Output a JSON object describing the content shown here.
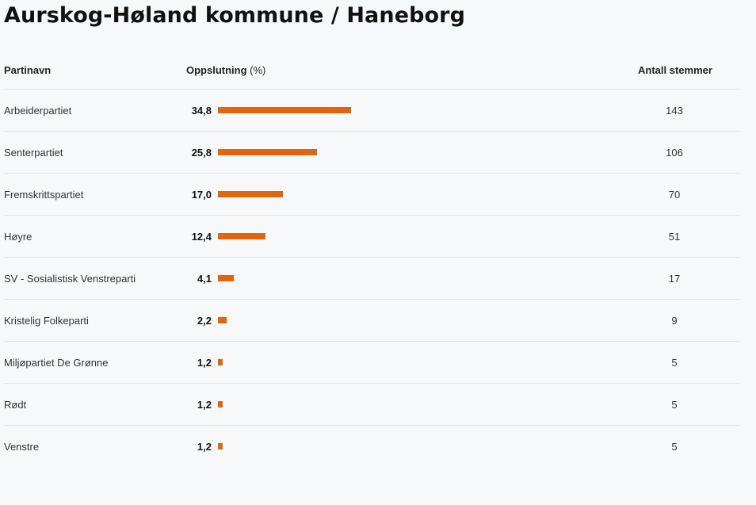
{
  "page": {
    "title": "Aurskog-Høland kommune / Haneborg"
  },
  "table": {
    "headers": {
      "party": "Partinavn",
      "share": "Oppslutning",
      "share_unit": "(%)",
      "votes": "Antall stemmer"
    },
    "bar_color": "#e0650b",
    "bar_max_percent": 34.8,
    "rows": [
      {
        "party": "Arbeiderpartiet",
        "percent_label": "34,8",
        "percent": 34.8,
        "votes": "143"
      },
      {
        "party": "Senterpartiet",
        "percent_label": "25,8",
        "percent": 25.8,
        "votes": "106"
      },
      {
        "party": "Fremskrittspartiet",
        "percent_label": "17,0",
        "percent": 17.0,
        "votes": "70"
      },
      {
        "party": "Høyre",
        "percent_label": "12,4",
        "percent": 12.4,
        "votes": "51"
      },
      {
        "party": "SV - Sosialistisk Venstreparti",
        "percent_label": "4,1",
        "percent": 4.1,
        "votes": "17"
      },
      {
        "party": "Kristelig Folkeparti",
        "percent_label": "2,2",
        "percent": 2.2,
        "votes": "9"
      },
      {
        "party": "Miljøpartiet De Grønne",
        "percent_label": "1,2",
        "percent": 1.2,
        "votes": "5"
      },
      {
        "party": "Rødt",
        "percent_label": "1,2",
        "percent": 1.2,
        "votes": "5"
      },
      {
        "party": "Venstre",
        "percent_label": "1,2",
        "percent": 1.2,
        "votes": "5"
      }
    ]
  }
}
